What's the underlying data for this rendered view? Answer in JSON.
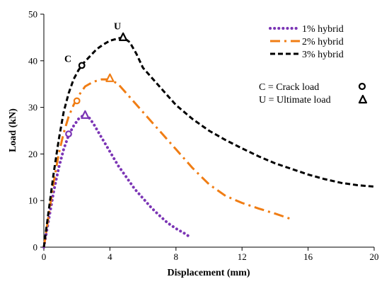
{
  "chart_data": {
    "type": "line",
    "xlabel": "Displacement (mm)",
    "ylabel": "Load (kN)",
    "xlim": [
      0,
      20
    ],
    "ylim": [
      0,
      50
    ],
    "xticks": [
      0,
      4,
      8,
      12,
      16,
      20
    ],
    "yticks": [
      0,
      10,
      20,
      30,
      40,
      50
    ],
    "grid": false,
    "legend_position": "top-right",
    "series": [
      {
        "name": "1% hybrid",
        "style": "dotted",
        "color": "#7B35B5",
        "x": [
          0,
          0.3,
          0.6,
          0.9,
          1.2,
          1.5,
          1.8,
          2.1,
          2.4,
          2.7,
          3.0,
          3.5,
          4.0,
          4.5,
          5.0,
          5.5,
          6.0,
          6.5,
          7.0,
          7.5,
          8.0,
          8.5,
          8.8
        ],
        "y": [
          0,
          6,
          12,
          17,
          21,
          24,
          26,
          27.5,
          28.3,
          28,
          26.5,
          23.5,
          20.5,
          17.5,
          15,
          12.5,
          10.5,
          8.5,
          6.8,
          5.2,
          4,
          3,
          2.3
        ]
      },
      {
        "name": "2% hybrid",
        "style": "dash-dot",
        "color": "#F07D14",
        "x": [
          0,
          0.3,
          0.6,
          0.9,
          1.2,
          1.5,
          1.8,
          2.1,
          2.5,
          3.0,
          3.5,
          4.0,
          4.5,
          5.0,
          6.0,
          7.0,
          8.0,
          9.0,
          10.0,
          11.0,
          12.0,
          13.0,
          14.0,
          15.0
        ],
        "y": [
          0,
          7,
          14,
          20,
          24.5,
          28,
          30.5,
          32.5,
          34.5,
          35.5,
          36,
          36,
          35,
          33,
          29,
          25,
          21,
          17,
          13.5,
          11,
          9.5,
          8.3,
          7.2,
          6
        ]
      },
      {
        "name": "3% hybrid",
        "style": "dashed",
        "color": "#000000",
        "x": [
          0,
          0.3,
          0.6,
          0.9,
          1.2,
          1.5,
          1.8,
          2.1,
          2.4,
          2.8,
          3.2,
          3.6,
          4.0,
          4.5,
          4.8,
          5.2,
          5.6,
          6.0,
          7.0,
          8.0,
          9.0,
          10.0,
          11.0,
          12.0,
          13.0,
          14.0,
          15.0,
          16.0,
          17.0,
          18.0,
          19.0,
          20.0
        ],
        "y": [
          0,
          8,
          16,
          23,
          29,
          33,
          36,
          38,
          39.5,
          41,
          42.5,
          43.5,
          44.3,
          44.8,
          45,
          44,
          41.5,
          38.5,
          34.5,
          30.5,
          27.5,
          25,
          23,
          21.2,
          19.5,
          18,
          16.8,
          15.6,
          14.6,
          13.8,
          13.3,
          13
        ]
      }
    ],
    "markers": [
      {
        "series": "1% hybrid",
        "kind": "crack",
        "x": 1.5,
        "y": 24.3,
        "color": "#7B35B5"
      },
      {
        "series": "1% hybrid",
        "kind": "ultimate",
        "x": 2.5,
        "y": 28.3,
        "color": "#7B35B5"
      },
      {
        "series": "2% hybrid",
        "kind": "crack",
        "x": 2.0,
        "y": 31.4,
        "color": "#F07D14"
      },
      {
        "series": "2% hybrid",
        "kind": "ultimate",
        "x": 4.0,
        "y": 36.2,
        "color": "#F07D14"
      },
      {
        "series": "3% hybrid",
        "kind": "crack",
        "x": 2.3,
        "y": 39,
        "color": "#000000"
      },
      {
        "series": "3% hybrid",
        "kind": "ultimate",
        "x": 4.8,
        "y": 45,
        "color": "#000000"
      }
    ],
    "point_labels": [
      {
        "text": "C",
        "x": 1.8,
        "y": 40.5
      },
      {
        "text": "U",
        "x": 4.8,
        "y": 47.5
      }
    ],
    "annotations": {
      "crack_text": "C = Crack load",
      "ultimate_text": "U = Ultimate load"
    }
  }
}
